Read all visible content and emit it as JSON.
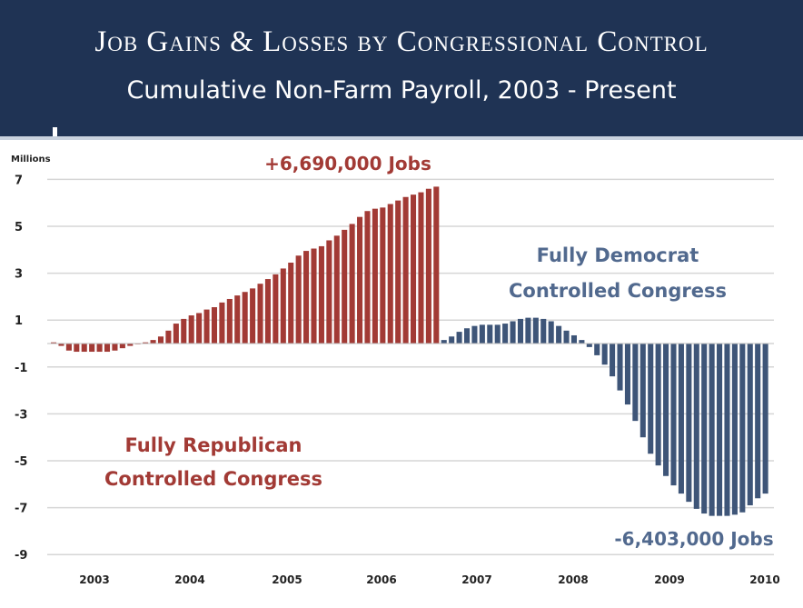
{
  "title": "Job Gains & Losses by Congressional Control",
  "subtitle": "Cumulative Non-Farm Payroll, 2003 - Present",
  "chart_data": {
    "type": "bar",
    "ylabel": "Millions",
    "ylim": [
      -9,
      7.5
    ],
    "yticks": [
      7,
      5,
      3,
      1,
      -1,
      -3,
      -5,
      -7,
      -9
    ],
    "xticks": [
      "2003",
      "2004",
      "2005",
      "2006",
      "2007",
      "2008",
      "2009",
      "2010"
    ],
    "grid": true,
    "colors": {
      "republican": "#a23a35",
      "democrat": "#3e5578",
      "text_democrat": "#51698e"
    },
    "series": [
      {
        "name": "Fully Republican Controlled Congress",
        "values": [
          0.05,
          -0.1,
          -0.3,
          -0.35,
          -0.35,
          -0.35,
          -0.35,
          -0.35,
          -0.3,
          -0.2,
          -0.1,
          0.0,
          0.05,
          0.15,
          0.3,
          0.55,
          0.85,
          1.05,
          1.2,
          1.3,
          1.45,
          1.55,
          1.75,
          1.9,
          2.05,
          2.2,
          2.35,
          2.55,
          2.75,
          2.95,
          3.2,
          3.45,
          3.75,
          3.95,
          4.05,
          4.15,
          4.4,
          4.6,
          4.85,
          5.1,
          5.4,
          5.65,
          5.75,
          5.8,
          5.95,
          6.1,
          6.25,
          6.35,
          6.45,
          6.6,
          6.69
        ]
      },
      {
        "name": "Fully Democrat Controlled Congress",
        "values": [
          0.15,
          0.3,
          0.5,
          0.65,
          0.75,
          0.8,
          0.8,
          0.8,
          0.85,
          0.95,
          1.05,
          1.1,
          1.1,
          1.05,
          0.95,
          0.75,
          0.55,
          0.35,
          0.15,
          -0.15,
          -0.5,
          -0.9,
          -1.4,
          -2.0,
          -2.6,
          -3.3,
          -4.0,
          -4.7,
          -5.2,
          -5.65,
          -6.05,
          -6.4,
          -6.75,
          -7.05,
          -7.25,
          -7.35,
          -7.35,
          -7.35,
          -7.3,
          -7.2,
          -6.9,
          -6.6,
          -6.4
        ]
      }
    ],
    "annotations": {
      "peak": "+6,690,000 Jobs",
      "trough": "-6,403,000 Jobs",
      "rep_line1": "Fully Republican",
      "rep_line2": "Controlled Congress",
      "dem_line1": "Fully Democrat",
      "dem_line2": "Controlled Congress"
    }
  }
}
